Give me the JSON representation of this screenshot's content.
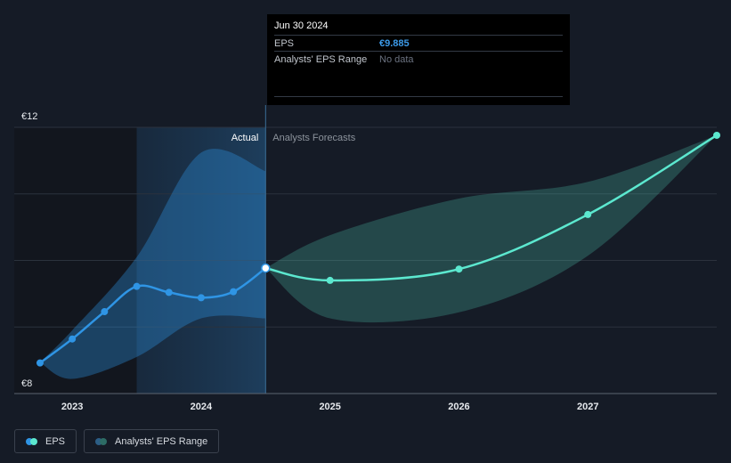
{
  "chart_data": {
    "type": "line",
    "y_axis": {
      "top_label": "€12",
      "bottom_label": "€8",
      "ylim": [
        8,
        12
      ],
      "grid": [
        11,
        10,
        9
      ]
    },
    "x_axis": {
      "ticks": [
        "2023",
        "2024",
        "2025",
        "2026",
        "2027"
      ],
      "xlim": [
        2022.55,
        2028.0
      ]
    },
    "regions": {
      "actual_label": "Actual",
      "forecast_label": "Analysts Forecasts",
      "split_x": 2024.5
    },
    "series": [
      {
        "name": "EPS",
        "color": "#2f95e5",
        "points": [
          [
            2022.75,
            8.46
          ],
          [
            2023.0,
            8.82
          ],
          [
            2023.25,
            9.23
          ],
          [
            2023.5,
            9.61
          ],
          [
            2023.75,
            9.52
          ],
          [
            2024.0,
            9.44
          ],
          [
            2024.25,
            9.53
          ],
          [
            2024.5,
            9.885
          ]
        ]
      },
      {
        "name": "EPS",
        "color": "#5ce8cf",
        "points": [
          [
            2024.5,
            9.885
          ],
          [
            2025.0,
            9.7
          ],
          [
            2026.0,
            9.87
          ],
          [
            2027.0,
            10.69
          ],
          [
            2028.0,
            11.88
          ]
        ]
      }
    ],
    "range_series": [
      {
        "name": "Analysts' EPS Range",
        "color": "#2f95e5",
        "upper": [
          [
            2022.75,
            8.47
          ],
          [
            2023.0,
            8.95
          ],
          [
            2023.5,
            10.05
          ],
          [
            2024.0,
            11.62
          ],
          [
            2024.5,
            11.34
          ]
        ],
        "lower": [
          [
            2022.75,
            8.47
          ],
          [
            2023.0,
            8.22
          ],
          [
            2023.5,
            8.55
          ],
          [
            2024.0,
            9.13
          ],
          [
            2024.5,
            9.13
          ]
        ]
      },
      {
        "name": "Analysts' EPS Range",
        "color": "#5ce8cf",
        "upper": [
          [
            2024.5,
            9.885
          ],
          [
            2025.0,
            10.38
          ],
          [
            2026.0,
            10.93
          ],
          [
            2027.0,
            11.18
          ],
          [
            2028.0,
            11.88
          ]
        ],
        "lower": [
          [
            2024.5,
            9.885
          ],
          [
            2025.0,
            9.13
          ],
          [
            2026.0,
            9.22
          ],
          [
            2027.0,
            10.07
          ],
          [
            2028.0,
            11.88
          ]
        ]
      }
    ],
    "highlight": {
      "x": 2024.5,
      "y": 9.885
    }
  },
  "tooltip": {
    "date": "Jun 30 2024",
    "eps_label": "EPS",
    "eps_value": "€9.885",
    "range_label": "Analysts' EPS Range",
    "range_value": "No data"
  },
  "legend": [
    {
      "label": "EPS",
      "colors": [
        "#2f95e5",
        "#5ce8cf"
      ]
    },
    {
      "label": "Analysts' EPS Range",
      "colors": [
        "#2c5e86",
        "#2d6c65"
      ]
    }
  ]
}
